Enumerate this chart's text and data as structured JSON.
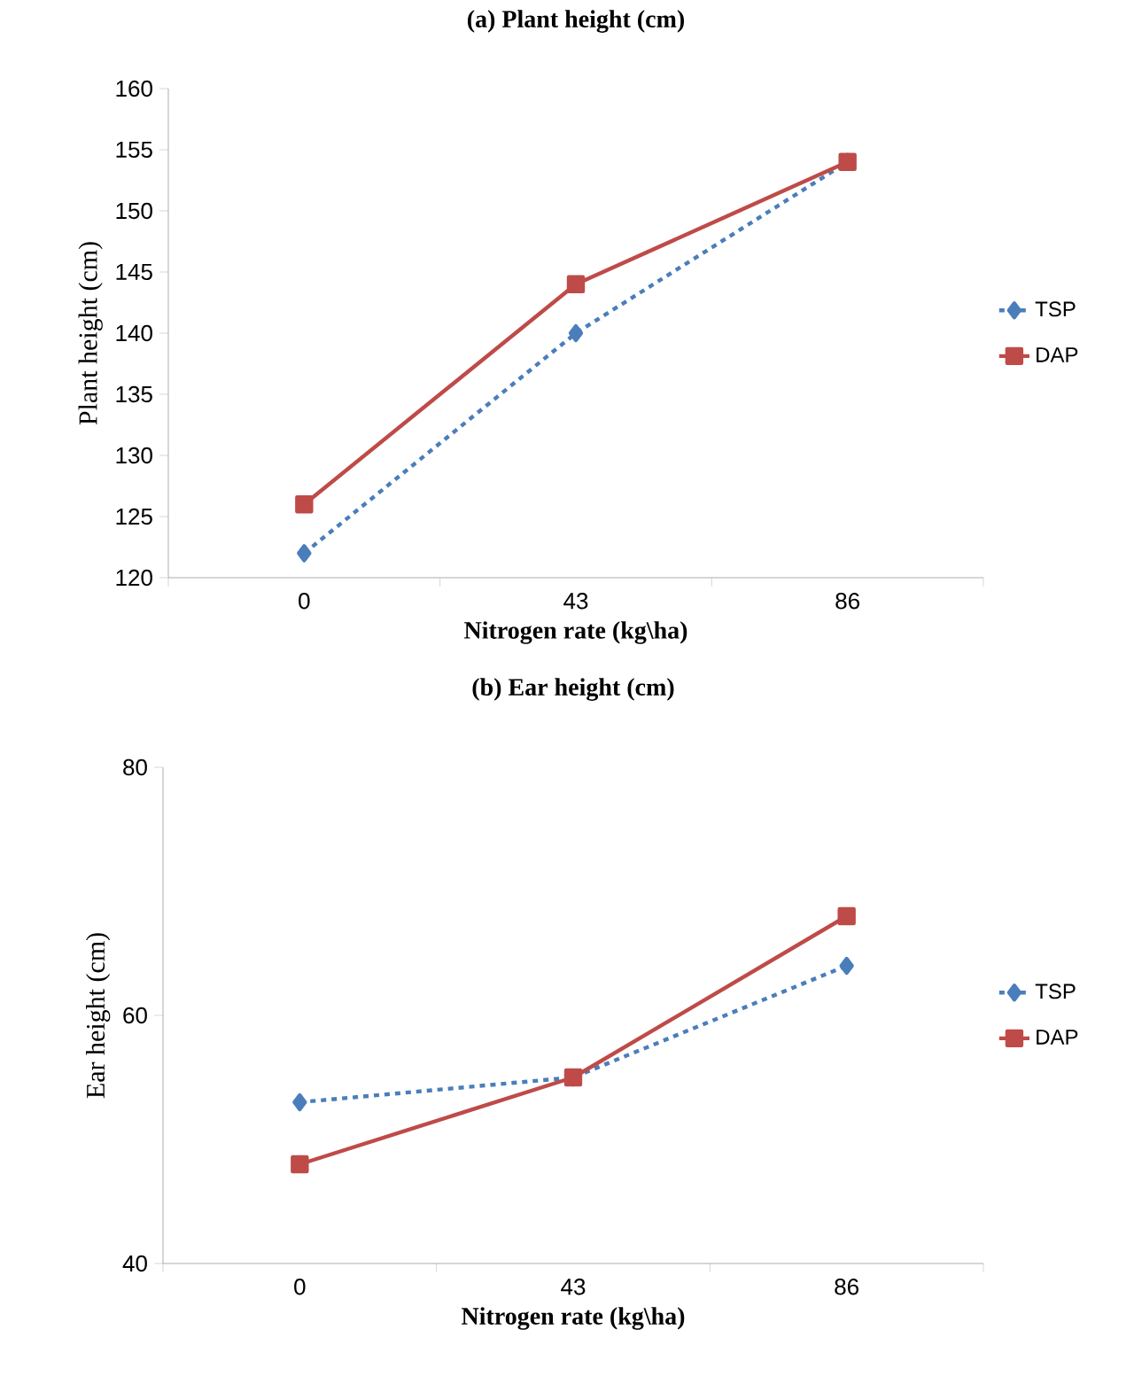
{
  "chart_data": [
    {
      "type": "line",
      "title": "(a) Plant height (cm)",
      "xlabel": "Nitrogen rate (kg\\ha)",
      "ylabel": "Plant height (cm)",
      "categories": [
        "0",
        "43",
        "86"
      ],
      "ylim": [
        120,
        160
      ],
      "yticks": [
        120,
        125,
        130,
        135,
        140,
        145,
        150,
        155,
        160
      ],
      "legend": "right",
      "series": [
        {
          "name": "TSP",
          "color": "#4a7ebb",
          "values": [
            122,
            140,
            154
          ],
          "marker": "diamond",
          "line_style": "dashed"
        },
        {
          "name": "DAP",
          "color": "#be4b48",
          "values": [
            126,
            144,
            154
          ],
          "marker": "square",
          "line_style": "solid"
        }
      ]
    },
    {
      "type": "line",
      "title": "(b) Ear height (cm)",
      "xlabel": "Nitrogen rate (kg\\ha)",
      "ylabel": "Ear height (cm)",
      "categories": [
        "0",
        "43",
        "86"
      ],
      "ylim": [
        40,
        80
      ],
      "yticks": [
        40,
        60,
        80
      ],
      "legend": "right",
      "series": [
        {
          "name": "TSP",
          "color": "#4a7ebb",
          "values": [
            53,
            55,
            64
          ],
          "marker": "diamond",
          "line_style": "dashed"
        },
        {
          "name": "DAP",
          "color": "#be4b48",
          "values": [
            48,
            55,
            68
          ],
          "marker": "square",
          "line_style": "solid"
        }
      ]
    }
  ]
}
